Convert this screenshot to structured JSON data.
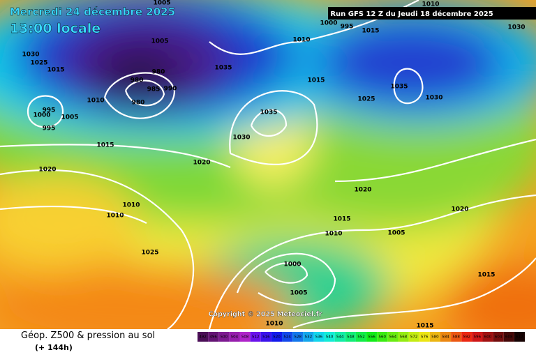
{
  "header": {
    "date": "Mercredi 24 décembre 2025",
    "time": "13:00 locale",
    "run": "Run GFS 12 Z du Jeudi 18 décembre 2025",
    "copyright": "Copyright © 2025 Meteociel.fr"
  },
  "isobar_labels": [
    "1005",
    "1010",
    "1000",
    "995",
    "1015",
    "1030",
    "1010",
    "1005",
    "1030",
    "1025",
    "1015",
    "980",
    "980",
    "985",
    "990",
    "980",
    "1035",
    "1015",
    "1035",
    "1030",
    "1025",
    "1010",
    "995",
    "1000",
    "995",
    "1005",
    "1035",
    "1030",
    "1015",
    "1020",
    "1020",
    "1020",
    "1010",
    "1010",
    "1020",
    "1015",
    "1010",
    "1005",
    "1025",
    "1000",
    "1015",
    "1005",
    "1010",
    "1015"
  ],
  "legend": {
    "title": "Géop. Z500 & pression au sol",
    "subtitle": "(+ 144h)",
    "ticks": [
      492,
      496,
      500,
      504,
      508,
      512,
      516,
      520,
      524,
      528,
      532,
      536,
      540,
      544,
      548,
      552,
      556,
      560,
      564,
      568,
      572,
      576,
      580,
      584,
      588,
      592,
      596,
      600,
      604,
      608,
      612
    ]
  }
}
